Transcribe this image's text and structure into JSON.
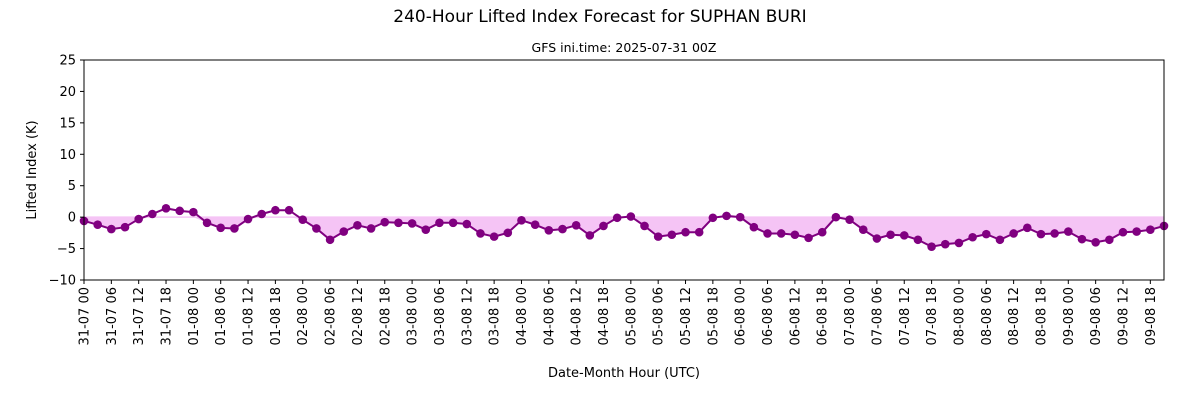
{
  "chart_data": {
    "type": "line",
    "title": "240-Hour Lifted Index Forecast for SUPHAN BURI",
    "subtitle": "GFS ini.time: 2025-07-31 00Z",
    "xlabel": "Date-Month Hour (UTC)",
    "ylabel": "Lifted Index (K)",
    "ylim": [
      -10,
      25
    ],
    "yticks": [
      -10,
      -5,
      0,
      5,
      10,
      15,
      20,
      25
    ],
    "x_labels": [
      "31-07 00",
      "31-07 06",
      "31-07 12",
      "31-07 18",
      "01-08 00",
      "01-08 06",
      "01-08 12",
      "01-08 18",
      "02-08 00",
      "02-08 06",
      "02-08 12",
      "02-08 18",
      "03-08 00",
      "03-08 06",
      "03-08 12",
      "03-08 18",
      "04-08 00",
      "04-08 06",
      "04-08 12",
      "04-08 18",
      "05-08 00",
      "05-08 06",
      "05-08 12",
      "05-08 18",
      "06-08 00",
      "06-08 06",
      "06-08 12",
      "06-08 18",
      "07-08 00",
      "07-08 06",
      "07-08 12",
      "07-08 18",
      "08-08 00",
      "08-08 06",
      "08-08 12",
      "08-08 18",
      "09-08 00",
      "09-08 06",
      "09-08 12",
      "09-08 18"
    ],
    "values": [
      -0.6,
      -1.2,
      -1.9,
      -1.6,
      -0.3,
      0.5,
      1.4,
      1.0,
      0.8,
      -0.9,
      -1.7,
      -1.8,
      -0.3,
      0.5,
      1.1,
      1.1,
      -0.4,
      -1.8,
      -3.6,
      -2.3,
      -1.3,
      -1.8,
      -0.8,
      -0.9,
      -1.0,
      -2.0,
      -0.9,
      -0.9,
      -1.1,
      -2.6,
      -3.1,
      -2.5,
      -0.5,
      -1.2,
      -2.1,
      -1.9,
      -1.3,
      -2.9,
      -1.4,
      -0.1,
      0.1,
      -1.4,
      -3.1,
      -2.8,
      -2.4,
      -2.4,
      -0.1,
      0.2,
      0.0,
      -1.6,
      -2.6,
      -2.6,
      -2.8,
      -3.3,
      -2.4,
      0.0,
      -0.4,
      -2.0,
      -3.4,
      -2.8,
      -2.9,
      -3.6,
      -4.7,
      -4.3,
      -4.1,
      -3.2,
      -2.7,
      -3.6,
      -2.6,
      -1.7,
      -2.7,
      -2.6,
      -2.3,
      -3.5,
      -4.0,
      -3.6,
      -2.4,
      -2.3,
      -2.0,
      -1.4
    ],
    "line_color": "#800080",
    "fill_color": "#f5c4f5",
    "grid": false,
    "legend": "none"
  }
}
